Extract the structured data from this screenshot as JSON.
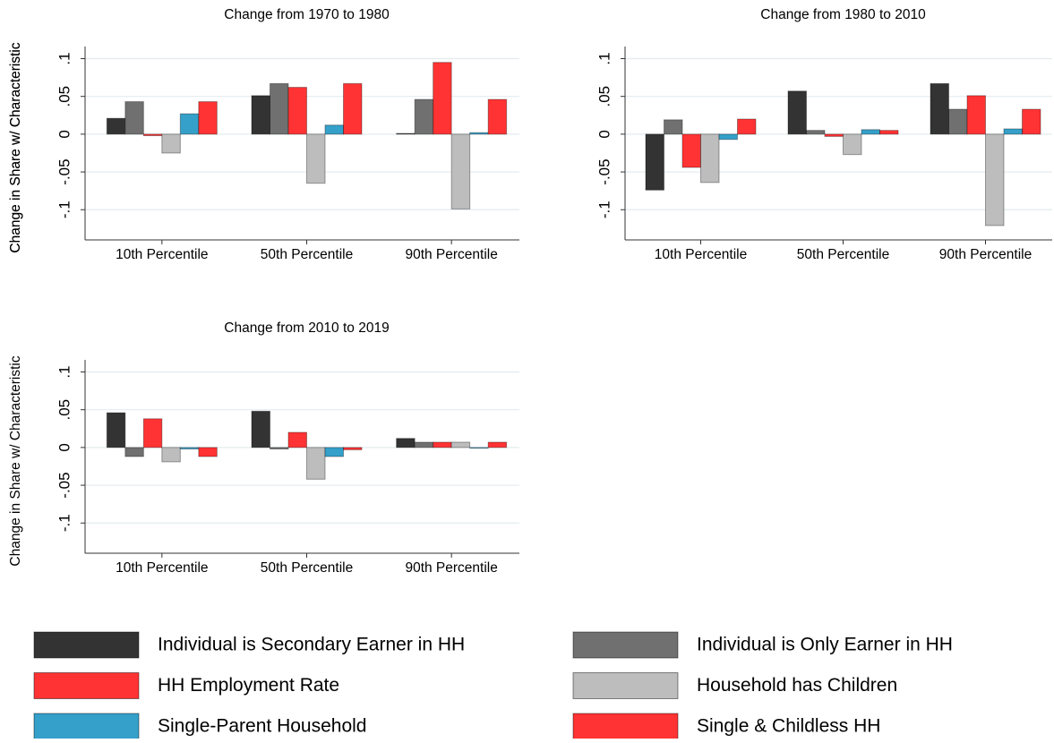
{
  "chart_data": [
    {
      "type": "bar",
      "title": "Change from 1970 to 1980",
      "y_label": "Change in Share w/ Characteristic",
      "categories": [
        "10th Percentile",
        "50th Percentile",
        "90th Percentile"
      ],
      "ylim": [
        -0.14,
        0.116
      ],
      "yticks": [
        {
          "value": -0.1,
          "label": "-.1"
        },
        {
          "value": -0.05,
          "label": "-.05"
        },
        0,
        {
          "value": 0.05,
          "label": ".05"
        },
        {
          "value": 0.1,
          "label": ".1"
        }
      ],
      "grid": true,
      "series": [
        {
          "name": "Individual is Secondary Earner in HH",
          "color": "#333333",
          "values": [
            0.021,
            0.051,
            0.001
          ]
        },
        {
          "name": "Individual is Only Earner in HH",
          "color": "#707070",
          "values": [
            0.043,
            0.067,
            0.046
          ]
        },
        {
          "name": "HH Employment Rate",
          "color": "#ff3333",
          "values": [
            -0.002,
            0.062,
            0.095
          ]
        },
        {
          "name": "Household has Children",
          "color": "#bdbdbd",
          "values": [
            -0.025,
            -0.065,
            -0.099
          ]
        },
        {
          "name": "Single-Parent Household",
          "color": "#35a0c9",
          "values": [
            0.027,
            0.012,
            0.002
          ]
        },
        {
          "name": "Single & Childless HH",
          "color": "#ff3333",
          "values": [
            0.043,
            0.067,
            0.046
          ]
        }
      ]
    },
    {
      "type": "bar",
      "title": "Change from 1980 to 2010",
      "y_label": "Change in Share w/ Characteristic",
      "categories": [
        "10th Percentile",
        "50th Percentile",
        "90th Percentile"
      ],
      "ylim": [
        -0.14,
        0.116
      ],
      "yticks": [
        {
          "value": -0.1,
          "label": "-.1"
        },
        {
          "value": -0.05,
          "label": "-.05"
        },
        0,
        {
          "value": 0.05,
          "label": ".05"
        },
        {
          "value": 0.1,
          "label": ".1"
        }
      ],
      "grid": true,
      "series": [
        {
          "name": "Individual is Secondary Earner in HH",
          "color": "#333333",
          "values": [
            -0.074,
            0.057,
            0.067
          ]
        },
        {
          "name": "Individual is Only Earner in HH",
          "color": "#707070",
          "values": [
            0.019,
            0.005,
            0.033
          ]
        },
        {
          "name": "HH Employment Rate",
          "color": "#ff3333",
          "values": [
            -0.044,
            -0.003,
            0.051
          ]
        },
        {
          "name": "Household has Children",
          "color": "#bdbdbd",
          "values": [
            -0.064,
            -0.027,
            -0.121
          ]
        },
        {
          "name": "Single-Parent Household",
          "color": "#35a0c9",
          "values": [
            -0.007,
            0.006,
            0.007
          ]
        },
        {
          "name": "Single & Childless HH",
          "color": "#ff3333",
          "values": [
            0.02,
            0.005,
            0.033
          ]
        }
      ]
    },
    {
      "type": "bar",
      "title": "Change from 2010 to 2019",
      "y_label": "Change in Share w/ Characteristic",
      "categories": [
        "10th Percentile",
        "50th Percentile",
        "90th Percentile"
      ],
      "ylim": [
        -0.14,
        0.116
      ],
      "yticks": [
        {
          "value": -0.1,
          "label": "-.1"
        },
        {
          "value": -0.05,
          "label": "-.05"
        },
        0,
        {
          "value": 0.05,
          "label": ".05"
        },
        {
          "value": 0.1,
          "label": ".1"
        }
      ],
      "grid": true,
      "series": [
        {
          "name": "Individual is Secondary Earner in HH",
          "color": "#333333",
          "values": [
            0.046,
            0.048,
            0.012
          ]
        },
        {
          "name": "Individual is Only Earner in HH",
          "color": "#707070",
          "values": [
            -0.012,
            -0.002,
            0.007
          ]
        },
        {
          "name": "HH Employment Rate",
          "color": "#ff3333",
          "values": [
            0.038,
            0.02,
            0.007
          ]
        },
        {
          "name": "Household has Children",
          "color": "#bdbdbd",
          "values": [
            -0.019,
            -0.042,
            0.007
          ]
        },
        {
          "name": "Single-Parent Household",
          "color": "#35a0c9",
          "values": [
            -0.002,
            -0.012,
            -0.001
          ]
        },
        {
          "name": "Single & Childless HH",
          "color": "#ff3333",
          "values": [
            -0.012,
            -0.003,
            0.007
          ]
        }
      ]
    }
  ]
}
